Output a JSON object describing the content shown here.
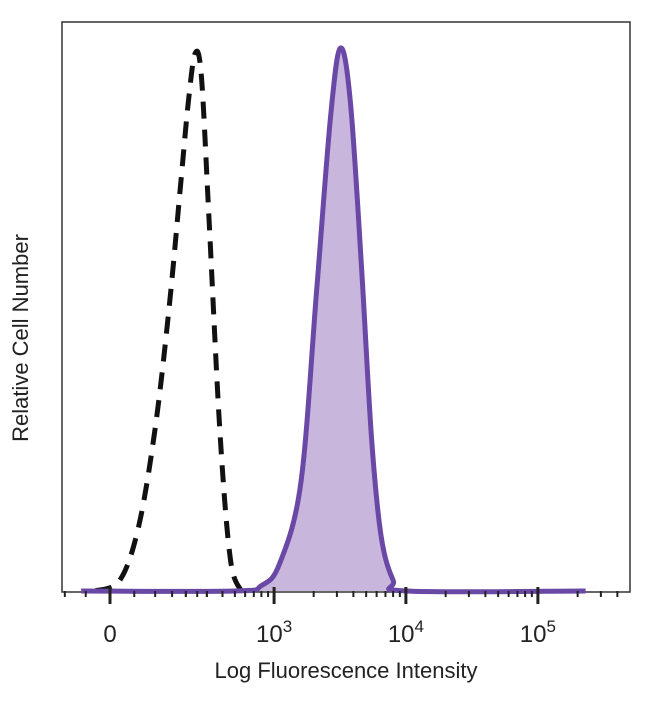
{
  "chart_data": {
    "type": "area",
    "title": "",
    "xlabel": "Log Fluorescence Intensity",
    "ylabel": "Relative Cell Number",
    "x_scale": "biexponential (linear near 0, log above)",
    "x_ticks": [
      {
        "value": 0,
        "label": "0",
        "exp": ""
      },
      {
        "value": 1000,
        "label": "10",
        "exp": "3"
      },
      {
        "value": 10000,
        "label": "10",
        "exp": "4"
      },
      {
        "value": 100000,
        "label": "10",
        "exp": "5"
      }
    ],
    "ylim": [
      0,
      100
    ],
    "grid": false,
    "colors": {
      "stained": "#6a48a6",
      "stained_fill": "#c9b6dd",
      "control": "#111111",
      "frame": "#333333"
    },
    "series": [
      {
        "style": "dashed-outline",
        "points": [
          [
            -30,
            0
          ],
          [
            20,
            2
          ],
          [
            60,
            12
          ],
          [
            100,
            30
          ],
          [
            140,
            52
          ],
          [
            180,
            75
          ],
          [
            210,
            90
          ],
          [
            240,
            99
          ],
          [
            270,
            95
          ],
          [
            310,
            70
          ],
          [
            380,
            30
          ],
          [
            460,
            6
          ],
          [
            560,
            0
          ]
        ]
      },
      {
        "style": "filled",
        "points": [
          [
            -60,
            0
          ],
          [
            500,
            0
          ],
          [
            800,
            1
          ],
          [
            1100,
            5
          ],
          [
            1600,
            20
          ],
          [
            2100,
            55
          ],
          [
            2700,
            88
          ],
          [
            3200,
            100
          ],
          [
            3800,
            90
          ],
          [
            4600,
            60
          ],
          [
            5500,
            28
          ],
          [
            6500,
            10
          ],
          [
            8000,
            2
          ],
          [
            10000,
            0
          ],
          [
            230000,
            0
          ]
        ]
      }
    ]
  }
}
